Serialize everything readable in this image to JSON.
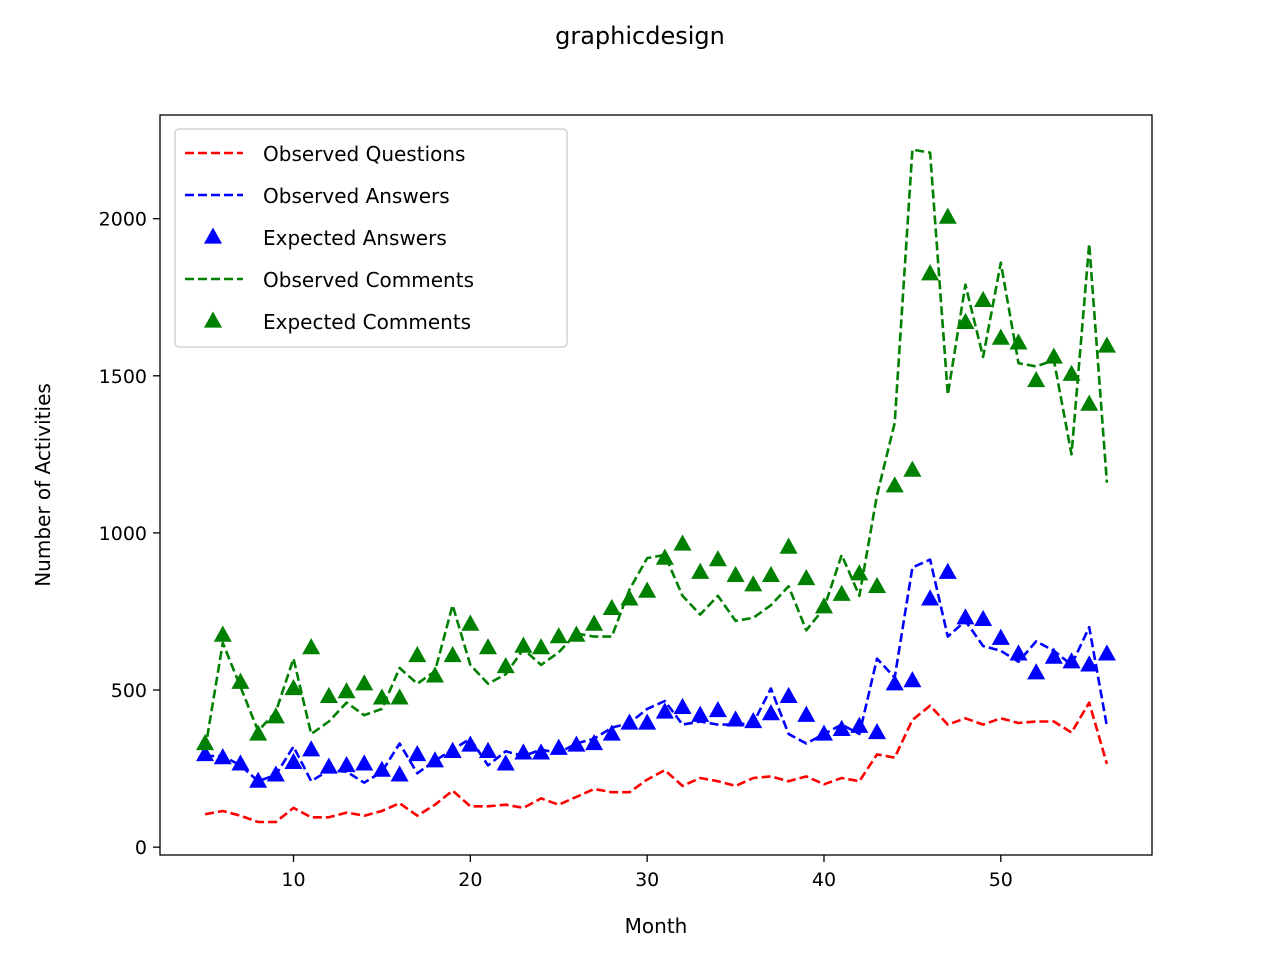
{
  "chart_data": {
    "type": "line",
    "title": "graphicdesign",
    "xlabel": "Month",
    "ylabel": "Number of Activities",
    "xlim": [
      2.45,
      58.55
    ],
    "ylim": [
      -25,
      2330
    ],
    "xticks": [
      10,
      20,
      30,
      40,
      50
    ],
    "yticks": [
      0,
      500,
      1000,
      1500,
      2000
    ],
    "grid": false,
    "legend_position": "top-left",
    "x": [
      5,
      6,
      7,
      8,
      9,
      10,
      11,
      12,
      13,
      14,
      15,
      16,
      17,
      18,
      19,
      20,
      21,
      22,
      23,
      24,
      25,
      26,
      27,
      28,
      29,
      30,
      31,
      32,
      33,
      34,
      35,
      36,
      37,
      38,
      39,
      40,
      41,
      42,
      43,
      44,
      45,
      46,
      47,
      48,
      49,
      50,
      51,
      52,
      53,
      54,
      55,
      56
    ],
    "series": [
      {
        "name": "Observed Questions",
        "style": "dashed",
        "color": "#ff0000",
        "values": [
          105,
          115,
          100,
          80,
          80,
          125,
          95,
          95,
          110,
          100,
          115,
          140,
          100,
          135,
          180,
          130,
          130,
          135,
          125,
          155,
          135,
          160,
          185,
          175,
          175,
          215,
          245,
          195,
          220,
          210,
          195,
          220,
          225,
          210,
          225,
          200,
          220,
          210,
          295,
          285,
          405,
          450,
          390,
          410,
          390,
          410,
          395,
          400,
          400,
          365,
          460,
          265
        ]
      },
      {
        "name": "Observed Answers",
        "style": "dashed",
        "color": "#0000ff",
        "values": [
          290,
          290,
          260,
          210,
          230,
          320,
          210,
          245,
          240,
          205,
          240,
          330,
          235,
          275,
          310,
          345,
          260,
          305,
          290,
          310,
          300,
          330,
          345,
          380,
          395,
          440,
          465,
          390,
          400,
          390,
          390,
          395,
          505,
          360,
          330,
          360,
          390,
          360,
          600,
          540,
          890,
          915,
          670,
          720,
          640,
          625,
          590,
          655,
          625,
          580,
          700,
          385
        ]
      },
      {
        "name": "Expected Answers",
        "style": "markers",
        "color": "#0000ff",
        "values": [
          295,
          285,
          265,
          210,
          230,
          270,
          310,
          255,
          260,
          265,
          245,
          230,
          295,
          275,
          305,
          325,
          305,
          265,
          300,
          300,
          315,
          325,
          330,
          360,
          395,
          395,
          430,
          445,
          420,
          435,
          405,
          400,
          425,
          480,
          420,
          360,
          375,
          385,
          365,
          520,
          530,
          790,
          875,
          730,
          725,
          665,
          615,
          555,
          605,
          590,
          580,
          615
        ]
      },
      {
        "name": "Observed Comments",
        "style": "dashed",
        "color": "#008000",
        "values": [
          310,
          650,
          510,
          370,
          430,
          600,
          360,
          400,
          460,
          420,
          440,
          570,
          520,
          560,
          770,
          580,
          520,
          550,
          630,
          580,
          620,
          680,
          670,
          670,
          820,
          920,
          930,
          800,
          740,
          800,
          720,
          730,
          770,
          830,
          690,
          760,
          930,
          800,
          1120,
          1350,
          2220,
          2210,
          1440,
          1790,
          1560,
          1860,
          1540,
          1530,
          1550,
          1250,
          1920,
          1160
        ]
      },
      {
        "name": "Expected Comments",
        "style": "markers",
        "color": "#008000",
        "values": [
          330,
          675,
          525,
          360,
          415,
          505,
          635,
          480,
          495,
          520,
          475,
          475,
          610,
          545,
          610,
          710,
          635,
          575,
          640,
          635,
          670,
          675,
          710,
          760,
          790,
          815,
          920,
          965,
          875,
          915,
          865,
          835,
          865,
          955,
          855,
          765,
          805,
          870,
          830,
          1150,
          1200,
          1825,
          2005,
          1670,
          1740,
          1620,
          1605,
          1485,
          1560,
          1505,
          1410,
          1595
        ]
      }
    ]
  }
}
